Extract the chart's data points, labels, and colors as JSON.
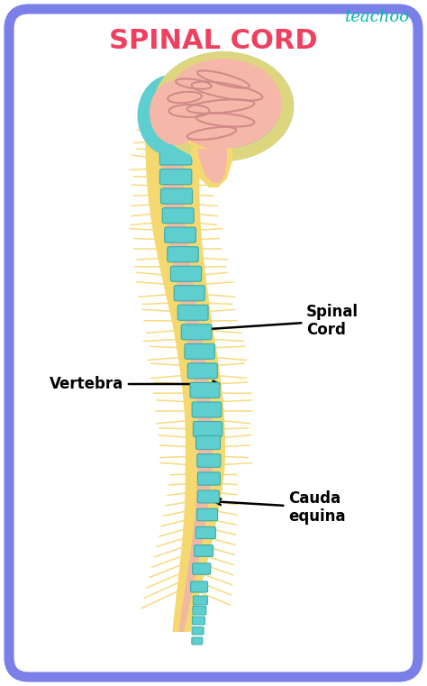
{
  "title": "SPINAL CORD",
  "title_color": "#F04060",
  "title_fontsize": 22,
  "teachoo_text": "teachoo",
  "teachoo_color": "#00BBAA",
  "bg_color": "#FFFFFF",
  "border_color": "#7B7FE8",
  "border_lw": 8,
  "vertebra_color": "#5ECECE",
  "vertebra_edge_color": "#3AACAC",
  "nerve_outer_color": "#F5D870",
  "nerve_inner_color": "#F0B8A0",
  "brain_teal_color": "#5ECECE",
  "brain_pink_color": "#F5B8A8",
  "brain_line_color": "#D08888",
  "label_vertebra": "Vertebra",
  "label_spinal_cord": "Spinal\nCord",
  "label_cauda_equina": "Cauda\nequina",
  "annotation_fontsize": 12
}
